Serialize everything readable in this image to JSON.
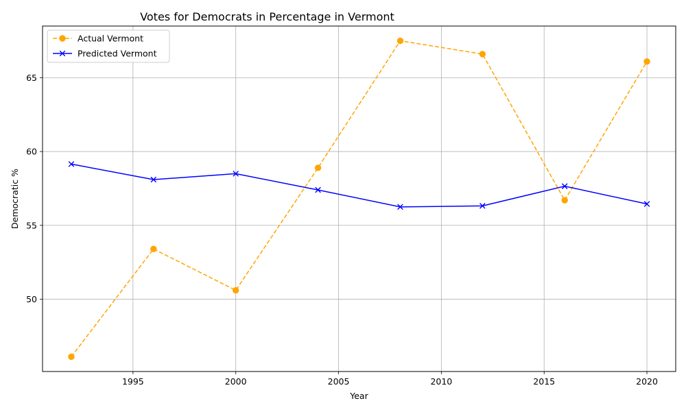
{
  "chart_data": {
    "type": "line",
    "title": "Votes for Democrats in Percentage in Vermont",
    "xlabel": "Year",
    "ylabel": "Democratic %",
    "xlim": [
      1990.6,
      2021.4
    ],
    "ylim": [
      45.1,
      68.5
    ],
    "xticks": [
      1995,
      2000,
      2005,
      2010,
      2015,
      2020
    ],
    "yticks": [
      50,
      55,
      60,
      65
    ],
    "grid": true,
    "legend_position": "top-left",
    "x": [
      1992,
      1996,
      2000,
      2004,
      2008,
      2012,
      2016,
      2020
    ],
    "series": [
      {
        "name": "Actual Vermont",
        "color": "#ffa500",
        "line_style": "dashed",
        "marker": "circle",
        "values": [
          46.1,
          53.4,
          50.6,
          58.9,
          67.5,
          66.6,
          56.7,
          66.1
        ]
      },
      {
        "name": "Predicted Vermont",
        "color": "#0000ff",
        "line_style": "solid",
        "marker": "x",
        "values": [
          59.15,
          58.1,
          58.5,
          57.4,
          56.25,
          56.32,
          57.65,
          56.45
        ]
      }
    ]
  }
}
